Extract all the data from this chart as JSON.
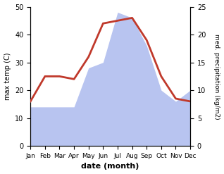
{
  "months": [
    "Jan",
    "Feb",
    "Mar",
    "Apr",
    "May",
    "Jun",
    "Jul",
    "Aug",
    "Sep",
    "Oct",
    "Nov",
    "Dec"
  ],
  "month_x": [
    0,
    1,
    2,
    3,
    4,
    5,
    6,
    7,
    8,
    9,
    10,
    11
  ],
  "temp_C": [
    16,
    25,
    25,
    24,
    32,
    44,
    45,
    46,
    38,
    25,
    17,
    16
  ],
  "precip_kg": [
    7,
    7,
    7,
    7,
    14,
    15,
    24,
    23,
    18,
    10,
    8,
    10
  ],
  "temp_color": "#c0392b",
  "precip_fill_color": "#b8c4f0",
  "left_ylim": [
    0,
    50
  ],
  "right_ylim": [
    0,
    25
  ],
  "xlabel": "date (month)",
  "ylabel_left": "max temp (C)",
  "ylabel_right": "med. precipitation (kg/m2)",
  "temp_linewidth": 2.0,
  "background_color": "#ffffff"
}
